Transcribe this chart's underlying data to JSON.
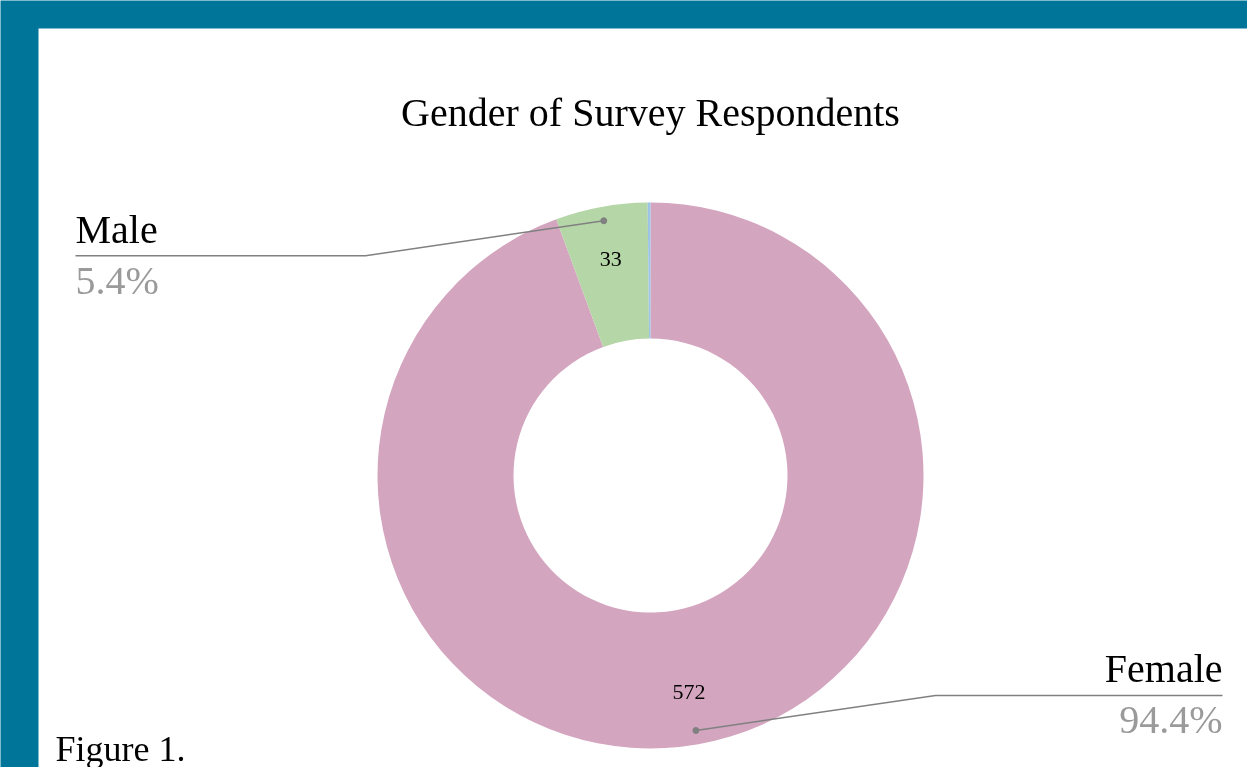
{
  "chart_data": {
    "type": "donut",
    "title": "Gender of Survey Respondents",
    "categories": [
      "Female",
      "Male",
      null
    ],
    "values": [
      572,
      33,
      1
    ],
    "colors": [
      "#d4a5bf",
      "#b5d6a7",
      "#9dc3e6"
    ],
    "value_labels": [
      "572",
      "33",
      null
    ],
    "annotations": [
      "94.4%",
      "5.4%",
      "Figure 1."
    ]
  }
}
